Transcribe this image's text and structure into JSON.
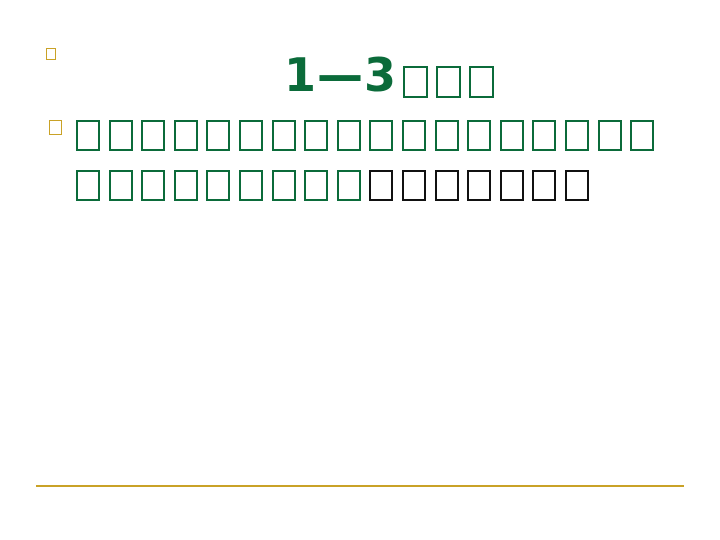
{
  "slide": {
    "title": {
      "number_text": "1—3",
      "trailing_glyph_count": 3
    },
    "paragraph": {
      "line1_green_glyph_count": 18,
      "line2_green_glyph_count": 9,
      "line2_black_glyph_count": 7
    }
  },
  "colors": {
    "title_green": "#0b6b3a",
    "text_black": "#111111",
    "accent_gold": "#c9a227",
    "background": "#ffffff"
  }
}
